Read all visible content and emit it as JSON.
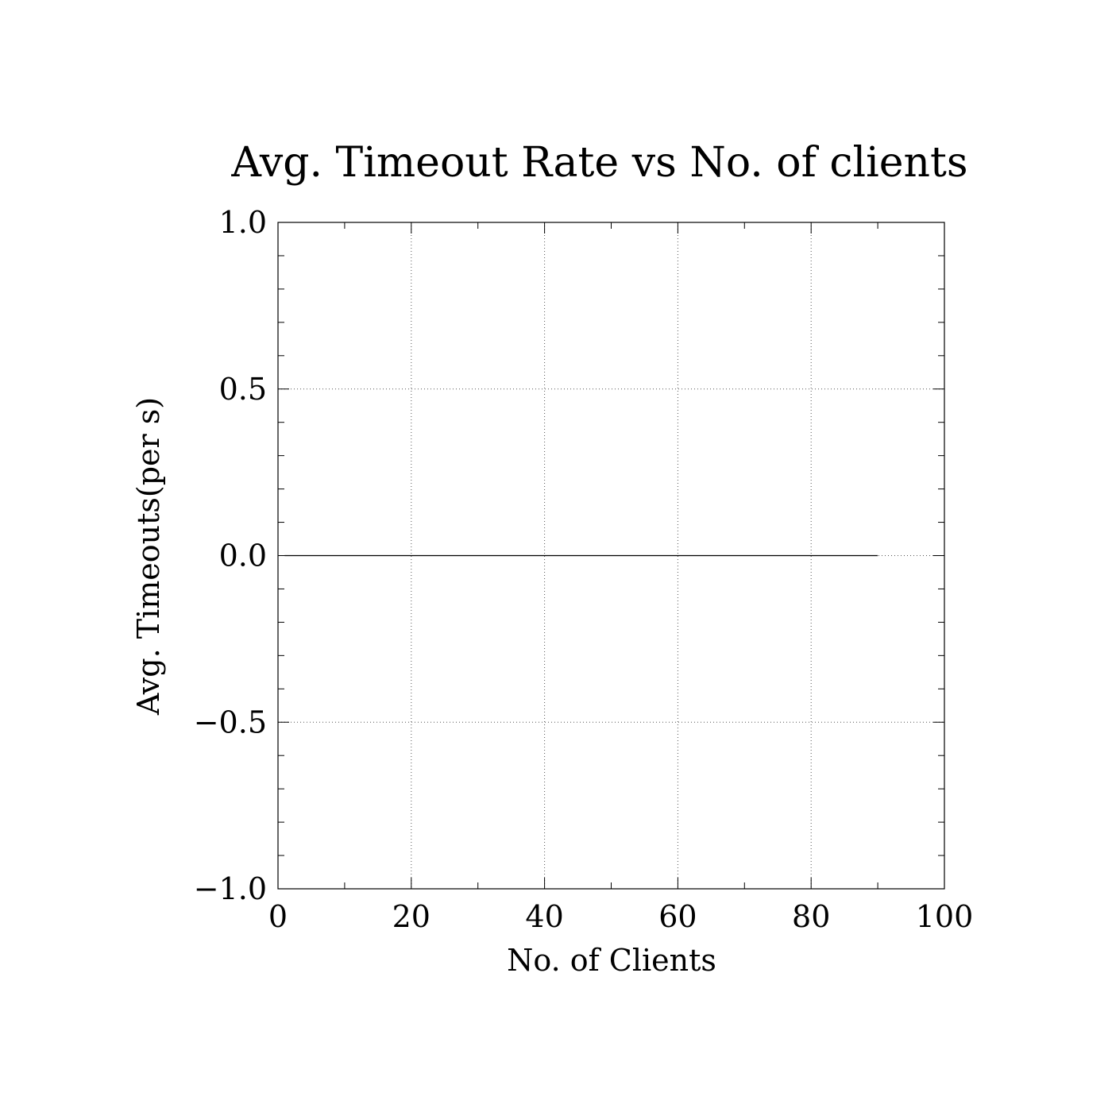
{
  "chart_data": {
    "type": "line",
    "title": "Avg. Timeout Rate vs No. of clients",
    "xlabel": "No. of Clients",
    "ylabel": "Avg. Timeouts(per s)",
    "xlim": [
      0,
      100
    ],
    "ylim": [
      -1.0,
      1.0
    ],
    "x_ticks": [
      0,
      20,
      40,
      60,
      80,
      100
    ],
    "x_tick_labels": [
      "0",
      "20",
      "40",
      "60",
      "80",
      "100"
    ],
    "x_minor_step": 10,
    "y_ticks": [
      -1.0,
      -0.5,
      0.0,
      0.5,
      1.0
    ],
    "y_tick_labels": [
      "−1.0",
      "−0.5",
      "0.0",
      "0.5",
      "1.0"
    ],
    "y_minor_step": 0.1,
    "grid": true,
    "grid_style": "dotted",
    "series": [
      {
        "x": [
          1,
          10,
          20,
          30,
          40,
          50,
          60,
          70,
          80,
          90
        ],
        "y": [
          0,
          0,
          0,
          0,
          0,
          0,
          0,
          0,
          0,
          0
        ],
        "color": "#000000"
      }
    ]
  }
}
